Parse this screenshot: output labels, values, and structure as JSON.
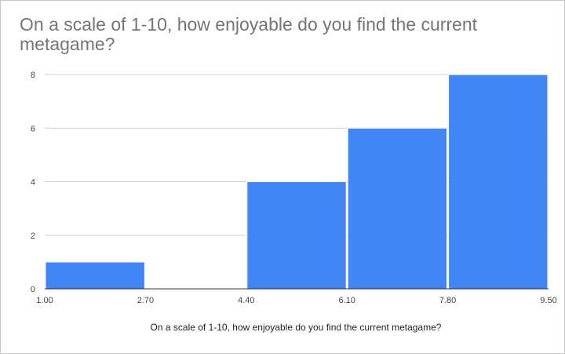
{
  "chart_data": {
    "type": "bar",
    "title": "On a scale of 1-10, how enjoyable do you find the current metagame?",
    "xlabel": "On a scale of 1-10, how enjoyable do you find the current metagame?",
    "ylabel": "",
    "x_ticks": [
      "1.00",
      "2.70",
      "4.40",
      "6.10",
      "7.80",
      "9.50"
    ],
    "y_ticks": [
      "0",
      "2",
      "4",
      "6",
      "8"
    ],
    "bins": [
      {
        "start": 1.0,
        "end": 2.7,
        "count": 1
      },
      {
        "start": 2.7,
        "end": 4.4,
        "count": 0
      },
      {
        "start": 4.4,
        "end": 6.1,
        "count": 4
      },
      {
        "start": 6.1,
        "end": 7.8,
        "count": 6
      },
      {
        "start": 7.8,
        "end": 9.5,
        "count": 8
      }
    ],
    "xlim": [
      1.0,
      9.5
    ],
    "ylim": [
      0,
      8
    ],
    "grid": true,
    "bar_color": "#4285f4"
  }
}
